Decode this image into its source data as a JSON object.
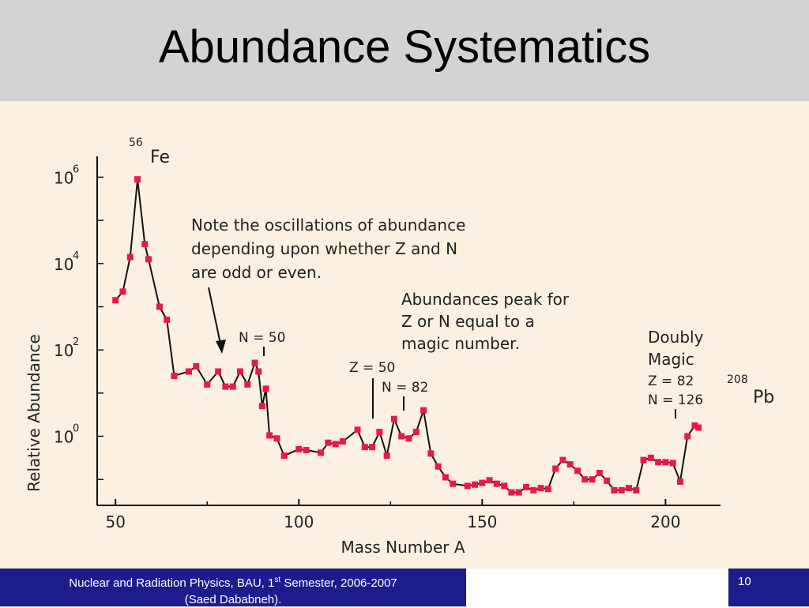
{
  "slide": {
    "title": "Abundance Systematics"
  },
  "footer": {
    "left_line1_a": "Nuclear and Radiation Physics, BAU, 1",
    "left_line1_sup": "st",
    "left_line1_b": " Semester, 2006-2007",
    "left_line2": "(Saed Dababneh).",
    "page_number": "10"
  },
  "annotations": {
    "fe_mass": "56",
    "fe_symbol": "Fe",
    "note_line1": "Note the oscillations of abundance",
    "note_line2": "depending upon whether Z and N",
    "note_line3": "are odd or even.",
    "peak_line1": "Abundances peak for",
    "peak_line2": "Z or N equal to a",
    "peak_line3": "magic number.",
    "n50": "N = 50",
    "z50": "Z = 50",
    "n82": "N = 82",
    "doubly_line1": "Doubly",
    "doubly_line2": "Magic",
    "z82": "Z = 82",
    "n126": "N = 126",
    "pb_mass": "208",
    "pb_symbol": "Pb"
  },
  "colors": {
    "marker": "#e8194a",
    "line": "#111111",
    "chart_bg": "#fcf0e0",
    "title_bg": "#d3d3d3",
    "footer_bg": "#1c1c8c"
  },
  "chart_data": {
    "type": "line",
    "xlabel": "Mass Number A",
    "ylabel": "Relative Abundance",
    "xlim": [
      45,
      215
    ],
    "ylim": [
      -1.6,
      6.3
    ],
    "y_scale": "log",
    "xticks": [
      50,
      100,
      150,
      200
    ],
    "xtick_labels": [
      "50",
      "100",
      "150",
      "200"
    ],
    "yticks": [
      0,
      2,
      4,
      6
    ],
    "ytick_labels": [
      {
        "base": "10",
        "exp": "0"
      },
      {
        "base": "10",
        "exp": "2"
      },
      {
        "base": "10",
        "exp": "4"
      },
      {
        "base": "10",
        "exp": "6"
      }
    ],
    "grid": false,
    "series": [
      {
        "x": [
          50,
          52,
          54,
          56,
          58,
          59,
          62,
          64,
          66,
          70,
          72,
          75,
          78,
          80,
          82,
          84,
          86,
          88,
          89,
          90,
          91,
          92,
          94,
          96,
          100,
          102,
          106,
          108,
          110,
          112,
          116,
          118,
          120,
          122,
          124,
          126,
          128,
          130,
          132,
          134,
          136,
          138,
          140,
          142,
          146,
          148,
          150,
          152,
          154,
          156,
          158,
          160,
          162,
          164,
          166,
          168,
          170,
          172,
          174,
          176,
          178,
          180,
          182,
          184,
          186,
          188,
          190,
          192,
          194,
          196,
          198,
          200,
          202,
          204,
          206,
          208,
          209
        ],
        "y": [
          3.15,
          3.35,
          4.15,
          5.95,
          4.45,
          4.1,
          3.0,
          2.7,
          1.4,
          1.5,
          1.62,
          1.2,
          1.5,
          1.15,
          1.15,
          1.5,
          1.2,
          1.7,
          1.5,
          0.7,
          1.1,
          0.02,
          -0.05,
          -0.45,
          -0.3,
          -0.32,
          -0.38,
          -0.15,
          -0.18,
          -0.12,
          0.15,
          -0.25,
          -0.25,
          0.1,
          -0.45,
          0.4,
          0.0,
          -0.05,
          0.1,
          0.6,
          -0.4,
          -0.7,
          -0.95,
          -1.1,
          -1.15,
          -1.12,
          -1.08,
          -1.02,
          -1.1,
          -1.15,
          -1.3,
          -1.3,
          -1.18,
          -1.25,
          -1.2,
          -1.22,
          -0.75,
          -0.55,
          -0.65,
          -0.8,
          -1.0,
          -1.0,
          -0.85,
          -1.03,
          -1.25,
          -1.25,
          -1.2,
          -1.25,
          -0.55,
          -0.5,
          -0.6,
          -0.6,
          -0.62,
          -1.05,
          0.0,
          0.25,
          0.2
        ]
      }
    ]
  }
}
